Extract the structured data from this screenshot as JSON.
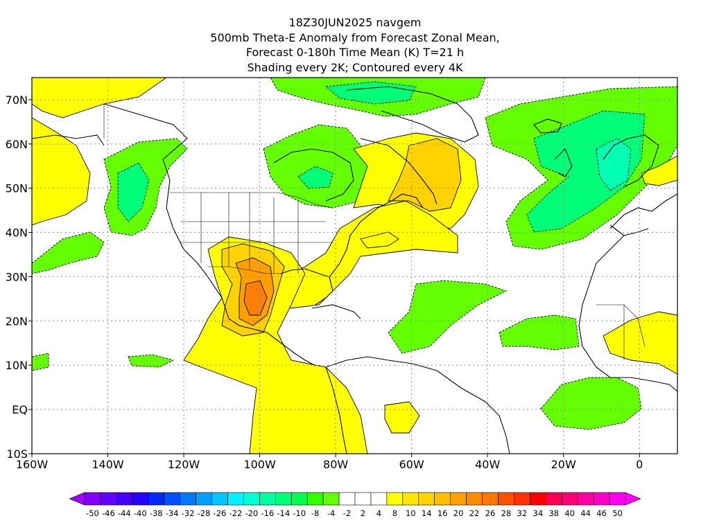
{
  "title_lines": [
    "18Z30JUN2025 navgem",
    "500mb Theta-E Anomaly from Forecast Zonal Mean,",
    "Forecast 0-180h Time Mean (K) T=21 h",
    "Shading every 2K; Contoured every 4K"
  ],
  "map": {
    "lat_labels": [
      "70N",
      "60N",
      "50N",
      "40N",
      "30N",
      "20N",
      "10N",
      "EQ",
      "10S"
    ],
    "lon_labels": [
      "160W",
      "140W",
      "120W",
      "100W",
      "80W",
      "60W",
      "40W",
      "20W",
      "0"
    ],
    "extent": {
      "lon_min": -160,
      "lon_max": 10,
      "lat_min": -10,
      "lat_max": 75
    }
  },
  "colorbar": {
    "labels": [
      "-50",
      "-46",
      "-44",
      "-40",
      "-38",
      "-34",
      "-32",
      "-28",
      "-26",
      "-22",
      "-20",
      "-16",
      "-14",
      "-10",
      "-8",
      "-4",
      "-2",
      "2",
      "4",
      "8",
      "10",
      "14",
      "16",
      "20",
      "22",
      "26",
      "28",
      "32",
      "34",
      "38",
      "40",
      "44",
      "46",
      "50"
    ],
    "colors": [
      "#a000ff",
      "#8200ff",
      "#6400ff",
      "#4600ff",
      "#2800ff",
      "#0028ff",
      "#0050ff",
      "#0078ff",
      "#00a0ff",
      "#00c8ff",
      "#00f0ff",
      "#00ffd2",
      "#00ffa0",
      "#00ff78",
      "#00ff50",
      "#32ff00",
      "#64ff00",
      "#ffffff",
      "#ffffff",
      "#ffffff",
      "#ffff00",
      "#ffe600",
      "#ffd200",
      "#ffbe00",
      "#ffa000",
      "#ff8c00",
      "#ff7800",
      "#ff5000",
      "#ff3200",
      "#ff0000",
      "#ff0050",
      "#ff0078",
      "#ff00a0",
      "#ff00c8",
      "#ff00f0",
      "#ff00ff"
    ]
  },
  "anomaly_colors": {
    "pos_light": "#ffff00",
    "pos_mid": "#ffd200",
    "pos_strong": "#ffa000",
    "pos_max": "#ff8000",
    "neg_light": "#64ff00",
    "neg_mid": "#00ff78",
    "neg_strong": "#00ffb4"
  }
}
